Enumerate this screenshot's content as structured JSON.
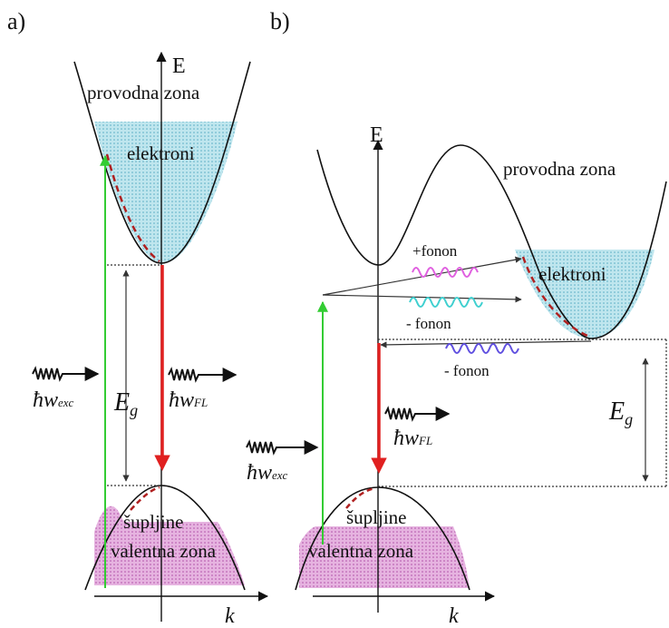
{
  "panels": {
    "a": {
      "label": "a)",
      "axis_e": "E",
      "axis_k": "k",
      "conduction_band": "provodna zona",
      "electrons": "elektroni",
      "holes": "šupljine",
      "valence_band": "valentna zona",
      "gap_symbol": "E",
      "gap_sub": "g",
      "excitation": "ħw",
      "excitation_sub": "exc",
      "emission": "ħw",
      "emission_sub": "FL"
    },
    "b": {
      "label": "b)",
      "axis_e": "E",
      "axis_k": "k",
      "conduction_band": "provodna  zona",
      "electrons": "elektroni",
      "holes": "šupljine",
      "valence_band": "valentna zona",
      "phonon_plus": "+fonon",
      "phonon_minus_1": "- fonon",
      "phonon_minus_2": "- fonon",
      "gap_symbol": "E",
      "gap_sub": "g",
      "excitation": "ħw",
      "excitation_sub": "exc",
      "emission": "ħw",
      "emission_sub": "FL"
    }
  },
  "colors": {
    "electron_fill": "#bfe6ee",
    "hole_fill": "#e6b3e0",
    "excitation_arrow": "#33cc33",
    "emission_arrow": "#e02020",
    "relaxation_path": "#b02020",
    "phonon_plus": "#e060e0",
    "phonon_minus_upper": "#40d0d0",
    "phonon_minus_lower": "#6050e0"
  }
}
